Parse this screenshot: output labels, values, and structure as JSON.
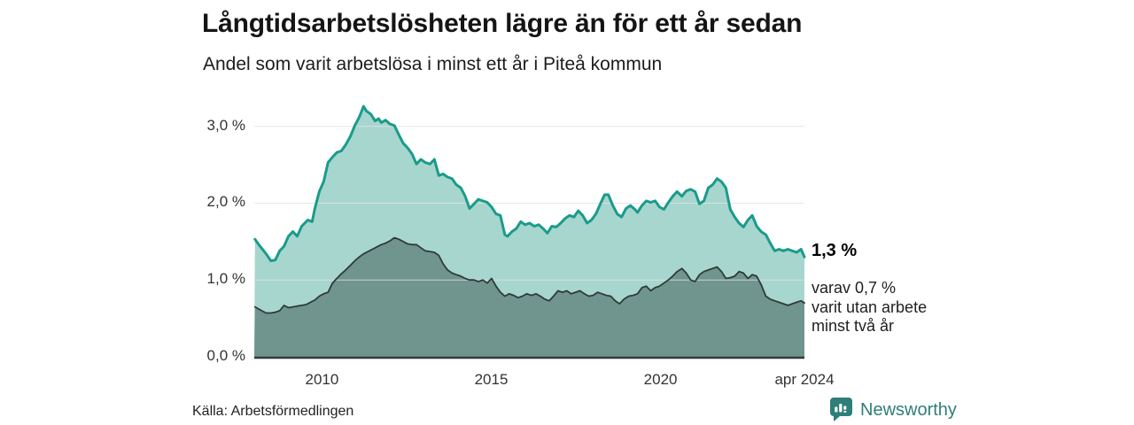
{
  "chart_data": {
    "type": "area",
    "title": "Långtidsarbetslösheten lägre än för ett år sedan",
    "subtitle": "Andel som varit arbetslösa i minst ett år i Piteå kommun",
    "grid": "horizontal-only",
    "legend": "none",
    "colors": {
      "grid_line": "#e2e2e7",
      "axis_line": "#343b39",
      "tick_text": "#333333"
    },
    "x_axis": {
      "domain": [
        2008.0,
        2024.25
      ],
      "ticks": [
        {
          "t": 2010,
          "label": "2010"
        },
        {
          "t": 2015,
          "label": "2015"
        },
        {
          "t": 2020,
          "label": "2020"
        },
        {
          "t": 2024.25,
          "label": "apr 2024"
        }
      ]
    },
    "y_axis": {
      "domain": [
        0,
        3.3
      ],
      "ticks": [
        {
          "v": 0,
          "label": "0,0 %"
        },
        {
          "v": 1,
          "label": "1,0 %"
        },
        {
          "v": 2,
          "label": "2,0 %"
        },
        {
          "v": 3,
          "label": "3,0 %"
        }
      ]
    },
    "series": [
      {
        "name": "Arbetslösa minst ett år",
        "line_color": "#1a9b8b",
        "fill_color": "#a7d6ce",
        "line_width": 3,
        "points": [
          [
            2008.02,
            1.53
          ],
          [
            2008.17,
            1.44
          ],
          [
            2008.35,
            1.34
          ],
          [
            2008.49,
            1.25
          ],
          [
            2008.62,
            1.26
          ],
          [
            2008.75,
            1.38
          ],
          [
            2008.88,
            1.44
          ],
          [
            2009.01,
            1.57
          ],
          [
            2009.14,
            1.63
          ],
          [
            2009.27,
            1.57
          ],
          [
            2009.4,
            1.7
          ],
          [
            2009.58,
            1.78
          ],
          [
            2009.71,
            1.76
          ],
          [
            2009.79,
            1.93
          ],
          [
            2009.92,
            2.15
          ],
          [
            2010.05,
            2.28
          ],
          [
            2010.18,
            2.53
          ],
          [
            2010.31,
            2.6
          ],
          [
            2010.44,
            2.66
          ],
          [
            2010.57,
            2.68
          ],
          [
            2010.7,
            2.76
          ],
          [
            2010.84,
            2.87
          ],
          [
            2010.97,
            3.01
          ],
          [
            2011.1,
            3.12
          ],
          [
            2011.23,
            3.26
          ],
          [
            2011.31,
            3.2
          ],
          [
            2011.44,
            3.16
          ],
          [
            2011.57,
            3.07
          ],
          [
            2011.67,
            3.1
          ],
          [
            2011.75,
            3.05
          ],
          [
            2011.88,
            3.08
          ],
          [
            2012.01,
            3.03
          ],
          [
            2012.14,
            3.01
          ],
          [
            2012.27,
            2.89
          ],
          [
            2012.4,
            2.78
          ],
          [
            2012.53,
            2.72
          ],
          [
            2012.66,
            2.64
          ],
          [
            2012.79,
            2.51
          ],
          [
            2012.92,
            2.57
          ],
          [
            2013.05,
            2.53
          ],
          [
            2013.19,
            2.51
          ],
          [
            2013.32,
            2.57
          ],
          [
            2013.45,
            2.36
          ],
          [
            2013.58,
            2.38
          ],
          [
            2013.71,
            2.34
          ],
          [
            2013.84,
            2.32
          ],
          [
            2013.97,
            2.24
          ],
          [
            2014.1,
            2.2
          ],
          [
            2014.23,
            2.09
          ],
          [
            2014.36,
            1.93
          ],
          [
            2014.49,
            1.99
          ],
          [
            2014.62,
            2.05
          ],
          [
            2014.75,
            2.03
          ],
          [
            2014.88,
            2.01
          ],
          [
            2015.01,
            1.95
          ],
          [
            2015.14,
            1.86
          ],
          [
            2015.27,
            1.84
          ],
          [
            2015.4,
            1.59
          ],
          [
            2015.48,
            1.57
          ],
          [
            2015.61,
            1.63
          ],
          [
            2015.74,
            1.67
          ],
          [
            2015.87,
            1.76
          ],
          [
            2016.0,
            1.72
          ],
          [
            2016.13,
            1.74
          ],
          [
            2016.27,
            1.7
          ],
          [
            2016.4,
            1.72
          ],
          [
            2016.53,
            1.67
          ],
          [
            2016.66,
            1.61
          ],
          [
            2016.79,
            1.7
          ],
          [
            2016.92,
            1.69
          ],
          [
            2017.05,
            1.74
          ],
          [
            2017.18,
            1.8
          ],
          [
            2017.31,
            1.84
          ],
          [
            2017.44,
            1.82
          ],
          [
            2017.57,
            1.9
          ],
          [
            2017.7,
            1.84
          ],
          [
            2017.83,
            1.74
          ],
          [
            2017.96,
            1.78
          ],
          [
            2018.09,
            1.86
          ],
          [
            2018.22,
            1.99
          ],
          [
            2018.35,
            2.11
          ],
          [
            2018.46,
            2.11
          ],
          [
            2018.59,
            1.97
          ],
          [
            2018.72,
            1.86
          ],
          [
            2018.85,
            1.82
          ],
          [
            2018.98,
            1.93
          ],
          [
            2019.11,
            1.97
          ],
          [
            2019.24,
            1.92
          ],
          [
            2019.32,
            1.88
          ],
          [
            2019.45,
            1.97
          ],
          [
            2019.58,
            2.03
          ],
          [
            2019.71,
            2.01
          ],
          [
            2019.84,
            2.03
          ],
          [
            2019.97,
            1.95
          ],
          [
            2020.1,
            1.92
          ],
          [
            2020.23,
            2.01
          ],
          [
            2020.36,
            2.09
          ],
          [
            2020.49,
            2.15
          ],
          [
            2020.63,
            2.09
          ],
          [
            2020.76,
            2.16
          ],
          [
            2020.89,
            2.18
          ],
          [
            2021.02,
            2.15
          ],
          [
            2021.15,
            1.99
          ],
          [
            2021.28,
            2.03
          ],
          [
            2021.41,
            2.2
          ],
          [
            2021.54,
            2.24
          ],
          [
            2021.67,
            2.32
          ],
          [
            2021.8,
            2.28
          ],
          [
            2021.93,
            2.2
          ],
          [
            2022.06,
            1.92
          ],
          [
            2022.19,
            1.82
          ],
          [
            2022.32,
            1.74
          ],
          [
            2022.45,
            1.69
          ],
          [
            2022.58,
            1.78
          ],
          [
            2022.71,
            1.84
          ],
          [
            2022.84,
            1.7
          ],
          [
            2022.97,
            1.63
          ],
          [
            2023.11,
            1.59
          ],
          [
            2023.24,
            1.48
          ],
          [
            2023.37,
            1.38
          ],
          [
            2023.5,
            1.4
          ],
          [
            2023.63,
            1.38
          ],
          [
            2023.76,
            1.4
          ],
          [
            2023.89,
            1.38
          ],
          [
            2024.02,
            1.36
          ],
          [
            2024.15,
            1.4
          ],
          [
            2024.25,
            1.3
          ]
        ]
      },
      {
        "name": "Utan arbete minst två år",
        "line_color": "#2f3b38",
        "fill_color": "#6f958e",
        "line_width": 1.8,
        "points": [
          [
            2008.02,
            0.65
          ],
          [
            2008.22,
            0.6
          ],
          [
            2008.35,
            0.57
          ],
          [
            2008.49,
            0.57
          ],
          [
            2008.62,
            0.58
          ],
          [
            2008.75,
            0.6
          ],
          [
            2008.88,
            0.67
          ],
          [
            2009.01,
            0.64
          ],
          [
            2009.14,
            0.65
          ],
          [
            2009.27,
            0.66
          ],
          [
            2009.4,
            0.67
          ],
          [
            2009.53,
            0.68
          ],
          [
            2009.66,
            0.71
          ],
          [
            2009.79,
            0.74
          ],
          [
            2009.92,
            0.79
          ],
          [
            2010.05,
            0.82
          ],
          [
            2010.18,
            0.84
          ],
          [
            2010.31,
            0.96
          ],
          [
            2010.44,
            1.02
          ],
          [
            2010.57,
            1.08
          ],
          [
            2010.7,
            1.13
          ],
          [
            2010.84,
            1.19
          ],
          [
            2010.97,
            1.25
          ],
          [
            2011.1,
            1.3
          ],
          [
            2011.23,
            1.34
          ],
          [
            2011.36,
            1.37
          ],
          [
            2011.49,
            1.4
          ],
          [
            2011.62,
            1.43
          ],
          [
            2011.75,
            1.46
          ],
          [
            2011.88,
            1.48
          ],
          [
            2012.01,
            1.51
          ],
          [
            2012.14,
            1.55
          ],
          [
            2012.27,
            1.53
          ],
          [
            2012.4,
            1.5
          ],
          [
            2012.53,
            1.47
          ],
          [
            2012.66,
            1.46
          ],
          [
            2012.79,
            1.46
          ],
          [
            2012.92,
            1.42
          ],
          [
            2013.05,
            1.38
          ],
          [
            2013.19,
            1.37
          ],
          [
            2013.32,
            1.36
          ],
          [
            2013.45,
            1.32
          ],
          [
            2013.58,
            1.21
          ],
          [
            2013.71,
            1.13
          ],
          [
            2013.84,
            1.09
          ],
          [
            2013.97,
            1.07
          ],
          [
            2014.1,
            1.05
          ],
          [
            2014.23,
            1.02
          ],
          [
            2014.36,
            1.0
          ],
          [
            2014.49,
            1.0
          ],
          [
            2014.62,
            0.98
          ],
          [
            2014.75,
            1.0
          ],
          [
            2014.88,
            0.96
          ],
          [
            2015.01,
            1.02
          ],
          [
            2015.14,
            0.92
          ],
          [
            2015.27,
            0.84
          ],
          [
            2015.4,
            0.79
          ],
          [
            2015.53,
            0.82
          ],
          [
            2015.66,
            0.8
          ],
          [
            2015.79,
            0.77
          ],
          [
            2015.92,
            0.79
          ],
          [
            2016.05,
            0.82
          ],
          [
            2016.19,
            0.8
          ],
          [
            2016.32,
            0.82
          ],
          [
            2016.45,
            0.79
          ],
          [
            2016.58,
            0.75
          ],
          [
            2016.71,
            0.73
          ],
          [
            2016.84,
            0.79
          ],
          [
            2016.97,
            0.86
          ],
          [
            2017.1,
            0.84
          ],
          [
            2017.23,
            0.86
          ],
          [
            2017.36,
            0.82
          ],
          [
            2017.49,
            0.84
          ],
          [
            2017.62,
            0.86
          ],
          [
            2017.75,
            0.82
          ],
          [
            2017.88,
            0.79
          ],
          [
            2018.01,
            0.8
          ],
          [
            2018.14,
            0.84
          ],
          [
            2018.27,
            0.82
          ],
          [
            2018.4,
            0.8
          ],
          [
            2018.53,
            0.79
          ],
          [
            2018.66,
            0.73
          ],
          [
            2018.79,
            0.69
          ],
          [
            2018.92,
            0.75
          ],
          [
            2019.06,
            0.79
          ],
          [
            2019.19,
            0.8
          ],
          [
            2019.32,
            0.82
          ],
          [
            2019.45,
            0.9
          ],
          [
            2019.58,
            0.92
          ],
          [
            2019.71,
            0.86
          ],
          [
            2019.84,
            0.9
          ],
          [
            2019.97,
            0.92
          ],
          [
            2020.1,
            0.96
          ],
          [
            2020.23,
            1.0
          ],
          [
            2020.36,
            1.05
          ],
          [
            2020.49,
            1.11
          ],
          [
            2020.63,
            1.15
          ],
          [
            2020.76,
            1.09
          ],
          [
            2020.89,
            1.0
          ],
          [
            2021.02,
            0.98
          ],
          [
            2021.15,
            1.07
          ],
          [
            2021.28,
            1.11
          ],
          [
            2021.41,
            1.13
          ],
          [
            2021.54,
            1.15
          ],
          [
            2021.67,
            1.17
          ],
          [
            2021.8,
            1.11
          ],
          [
            2021.93,
            1.02
          ],
          [
            2022.06,
            1.03
          ],
          [
            2022.19,
            1.05
          ],
          [
            2022.32,
            1.11
          ],
          [
            2022.45,
            1.09
          ],
          [
            2022.58,
            1.02
          ],
          [
            2022.71,
            1.07
          ],
          [
            2022.84,
            1.05
          ],
          [
            2022.97,
            0.94
          ],
          [
            2023.11,
            0.79
          ],
          [
            2023.24,
            0.75
          ],
          [
            2023.37,
            0.73
          ],
          [
            2023.5,
            0.71
          ],
          [
            2023.63,
            0.69
          ],
          [
            2023.76,
            0.67
          ],
          [
            2023.89,
            0.69
          ],
          [
            2024.02,
            0.71
          ],
          [
            2024.15,
            0.73
          ],
          [
            2024.25,
            0.7
          ]
        ]
      }
    ],
    "annotations": {
      "endpoint_value": "1,3 %",
      "endpoint_note_lines": [
        "varav 0,7 %",
        "varit utan arbete",
        "minst två år"
      ]
    }
  },
  "footer": {
    "source": "Källa: Arbetsförmedlingen",
    "brand": "Newsworthy",
    "brand_color": "#2e7e79"
  }
}
